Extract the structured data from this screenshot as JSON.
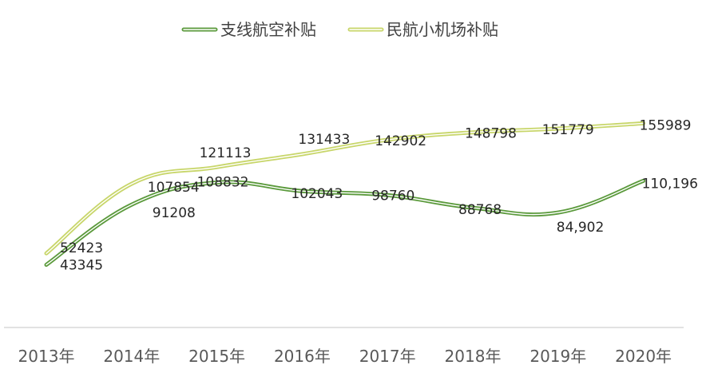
{
  "chart_data": {
    "type": "line",
    "smooth": true,
    "categories": [
      "2013年",
      "2014年",
      "2015年",
      "2016年",
      "2017年",
      "2018年",
      "2019年",
      "2020年"
    ],
    "series": [
      {
        "name": "支线航空补贴",
        "color": "#5b9a3c",
        "values": [
          43345,
          91208,
          108832,
          102043,
          98760,
          88768,
          84902,
          110196
        ],
        "labels": [
          "43345",
          "91208",
          "108832",
          "102043",
          "98760",
          "88768",
          "84,902",
          "110,196"
        ]
      },
      {
        "name": "民航小机场补贴",
        "color": "#c8d66a",
        "values": [
          52423,
          107854,
          121113,
          131433,
          142902,
          148798,
          151779,
          155989
        ],
        "labels": [
          "52423",
          "107854",
          "121113",
          "131433",
          "142902",
          "148798",
          "151779",
          "155989"
        ]
      }
    ],
    "legend_position": "top-center",
    "grid": false,
    "y_axis_visible": false
  }
}
